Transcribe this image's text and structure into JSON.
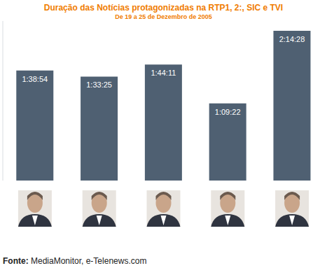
{
  "chart_data": {
    "type": "bar",
    "title": "Duração das Notícias protagonizadas na RTP1, 2:, SIC e TVI",
    "subtitle": "De 19 a 25 de Dezembro de 2005",
    "categories": [
      null,
      null,
      null,
      null,
      null
    ],
    "values": [
      5934,
      5605,
      6251,
      4162,
      8068
    ],
    "value_labels": [
      "1:38:54",
      "1:33:25",
      "1:44:11",
      "1:09:22",
      "2:14:28"
    ],
    "color": "#4f6072",
    "ylim": [
      0,
      8600
    ],
    "yticks": [],
    "grid": false,
    "data_labels": true,
    "tick_labels": false,
    "source": "Fonte: MediaMonitor, e-Telenews.com"
  }
}
